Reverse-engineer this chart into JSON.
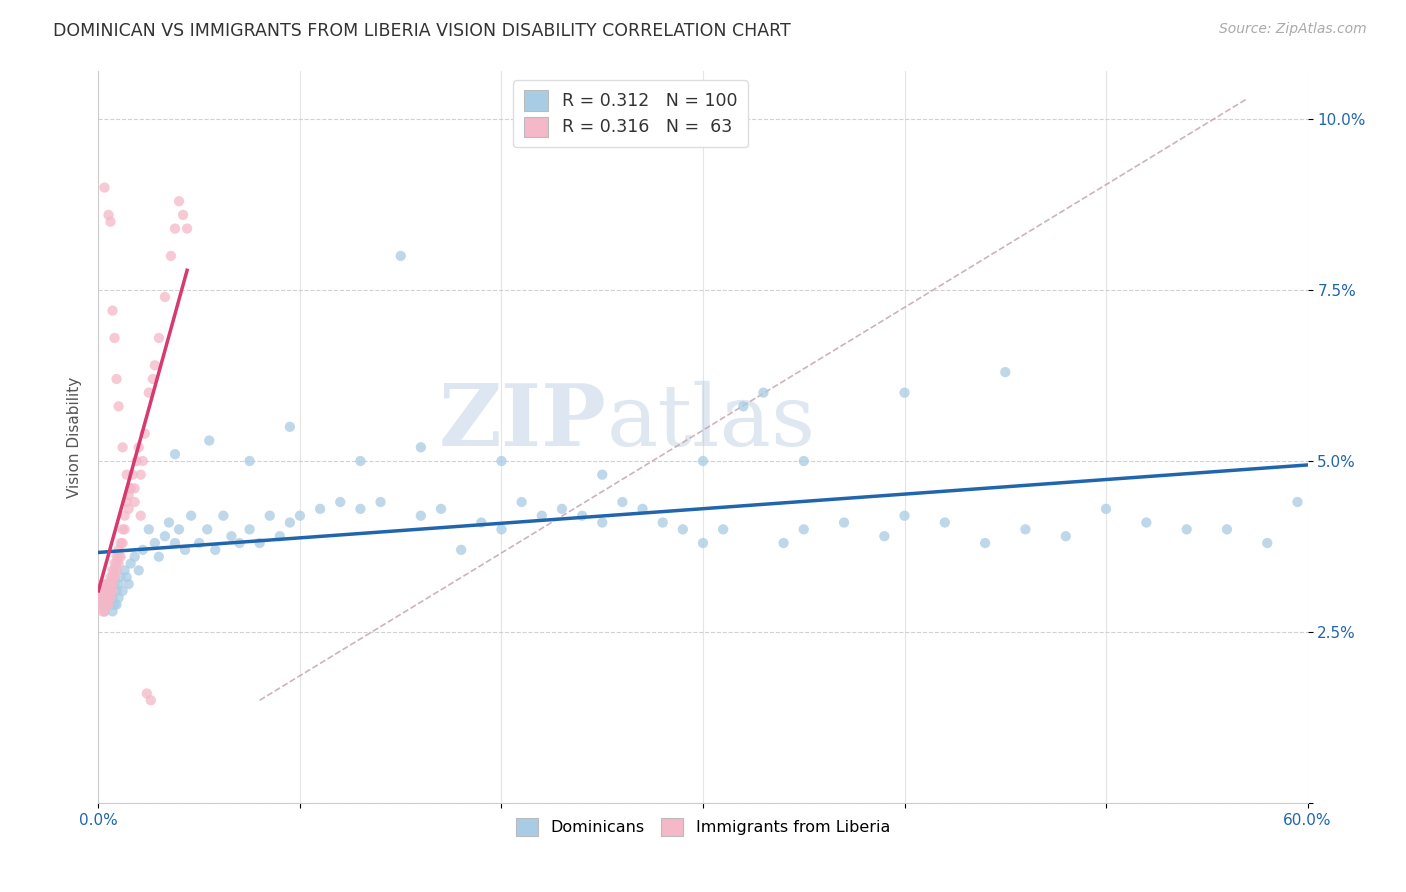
{
  "title": "DOMINICAN VS IMMIGRANTS FROM LIBERIA VISION DISABILITY CORRELATION CHART",
  "source": "Source: ZipAtlas.com",
  "ylabel": "Vision Disability",
  "yticks": [
    0.0,
    0.025,
    0.05,
    0.075,
    0.1
  ],
  "ytick_labels": [
    "",
    "2.5%",
    "5.0%",
    "7.5%",
    "10.0%"
  ],
  "xlim": [
    0.0,
    0.6
  ],
  "ylim": [
    0.005,
    0.107
  ],
  "watermark_zip": "ZIP",
  "watermark_atlas": "atlas",
  "color_blue": "#a8cce4",
  "color_pink": "#f4b8c8",
  "line_blue": "#2166ac",
  "line_pink": "#d63a6e",
  "line_dashed_color": "#c0a0b0",
  "background": "#ffffff",
  "dominicans_x": [
    0.001,
    0.001,
    0.002,
    0.002,
    0.003,
    0.003,
    0.004,
    0.004,
    0.005,
    0.005,
    0.006,
    0.006,
    0.007,
    0.007,
    0.008,
    0.008,
    0.009,
    0.009,
    0.01,
    0.01,
    0.011,
    0.012,
    0.013,
    0.014,
    0.015,
    0.016,
    0.018,
    0.02,
    0.022,
    0.025,
    0.028,
    0.03,
    0.033,
    0.035,
    0.038,
    0.04,
    0.043,
    0.046,
    0.05,
    0.054,
    0.058,
    0.062,
    0.066,
    0.07,
    0.075,
    0.08,
    0.085,
    0.09,
    0.095,
    0.1,
    0.11,
    0.12,
    0.13,
    0.14,
    0.15,
    0.16,
    0.17,
    0.18,
    0.19,
    0.2,
    0.21,
    0.22,
    0.23,
    0.24,
    0.25,
    0.26,
    0.27,
    0.28,
    0.29,
    0.3,
    0.31,
    0.32,
    0.33,
    0.34,
    0.35,
    0.37,
    0.39,
    0.4,
    0.42,
    0.44,
    0.46,
    0.48,
    0.5,
    0.52,
    0.54,
    0.56,
    0.58,
    0.595,
    0.038,
    0.055,
    0.075,
    0.095,
    0.13,
    0.16,
    0.2,
    0.25,
    0.3,
    0.35,
    0.4,
    0.45
  ],
  "dominicans_y": [
    0.031,
    0.03,
    0.029,
    0.031,
    0.03,
    0.028,
    0.031,
    0.029,
    0.03,
    0.032,
    0.029,
    0.031,
    0.028,
    0.03,
    0.029,
    0.032,
    0.031,
    0.029,
    0.03,
    0.032,
    0.033,
    0.031,
    0.034,
    0.033,
    0.032,
    0.035,
    0.036,
    0.034,
    0.037,
    0.04,
    0.038,
    0.036,
    0.039,
    0.041,
    0.038,
    0.04,
    0.037,
    0.042,
    0.038,
    0.04,
    0.037,
    0.042,
    0.039,
    0.038,
    0.04,
    0.038,
    0.042,
    0.039,
    0.041,
    0.042,
    0.043,
    0.044,
    0.043,
    0.044,
    0.08,
    0.042,
    0.043,
    0.037,
    0.041,
    0.04,
    0.044,
    0.042,
    0.043,
    0.042,
    0.041,
    0.044,
    0.043,
    0.041,
    0.04,
    0.038,
    0.04,
    0.058,
    0.06,
    0.038,
    0.04,
    0.041,
    0.039,
    0.042,
    0.041,
    0.038,
    0.04,
    0.039,
    0.043,
    0.041,
    0.04,
    0.04,
    0.038,
    0.044,
    0.051,
    0.053,
    0.05,
    0.055,
    0.05,
    0.052,
    0.05,
    0.048,
    0.05,
    0.05,
    0.06,
    0.063
  ],
  "liberia_x": [
    0.001,
    0.001,
    0.001,
    0.002,
    0.002,
    0.002,
    0.002,
    0.003,
    0.003,
    0.003,
    0.003,
    0.004,
    0.004,
    0.004,
    0.004,
    0.005,
    0.005,
    0.005,
    0.005,
    0.006,
    0.006,
    0.006,
    0.006,
    0.007,
    0.007,
    0.007,
    0.007,
    0.008,
    0.008,
    0.008,
    0.009,
    0.009,
    0.009,
    0.01,
    0.01,
    0.01,
    0.011,
    0.011,
    0.012,
    0.012,
    0.013,
    0.013,
    0.014,
    0.015,
    0.015,
    0.016,
    0.017,
    0.018,
    0.019,
    0.02,
    0.021,
    0.022,
    0.023,
    0.025,
    0.027,
    0.028,
    0.03,
    0.033,
    0.036,
    0.038,
    0.04,
    0.042,
    0.044
  ],
  "liberia_y": [
    0.03,
    0.029,
    0.031,
    0.03,
    0.028,
    0.032,
    0.031,
    0.029,
    0.031,
    0.03,
    0.028,
    0.032,
    0.031,
    0.029,
    0.03,
    0.031,
    0.029,
    0.032,
    0.03,
    0.033,
    0.031,
    0.03,
    0.032,
    0.034,
    0.032,
    0.031,
    0.033,
    0.035,
    0.033,
    0.034,
    0.036,
    0.034,
    0.035,
    0.037,
    0.035,
    0.036,
    0.038,
    0.036,
    0.04,
    0.038,
    0.042,
    0.04,
    0.044,
    0.045,
    0.043,
    0.046,
    0.048,
    0.046,
    0.05,
    0.052,
    0.048,
    0.05,
    0.054,
    0.06,
    0.062,
    0.064,
    0.068,
    0.074,
    0.08,
    0.084,
    0.088,
    0.086,
    0.084
  ],
  "liberia_outliers_x": [
    0.003,
    0.005,
    0.006,
    0.007,
    0.008,
    0.009,
    0.01,
    0.012,
    0.014,
    0.016,
    0.018,
    0.021,
    0.024,
    0.026
  ],
  "liberia_outliers_y": [
    0.09,
    0.086,
    0.085,
    0.072,
    0.068,
    0.062,
    0.058,
    0.052,
    0.048,
    0.046,
    0.044,
    0.042,
    0.016,
    0.015
  ]
}
